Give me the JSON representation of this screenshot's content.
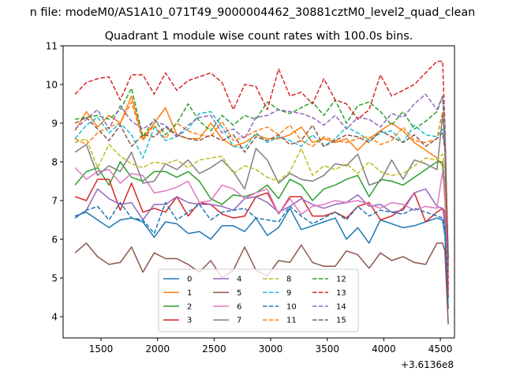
{
  "chart_data": {
    "type": "line",
    "suptitle": "n file: modeM0/AS1A10_071T49_9000004462_30881cztM0_level2_quad_clean",
    "title": "Quadrant 1 module wise count rates with 100.0s bins.",
    "xlabel": "",
    "ylabel": "",
    "offset_label": "+3.6136e8",
    "xlim": [
      1165,
      4625
    ],
    "ylim": [
      3.45,
      11.0
    ],
    "xticks": [
      1500,
      2000,
      2500,
      3000,
      3500,
      4000,
      4500
    ],
    "yticks": [
      4,
      5,
      6,
      7,
      8,
      9,
      10,
      11
    ],
    "legend": {
      "location": "lower-center",
      "columns": 4
    },
    "x": [
      1270,
      1370,
      1470,
      1570,
      1670,
      1770,
      1870,
      1970,
      2070,
      2170,
      2270,
      2370,
      2470,
      2570,
      2670,
      2770,
      2870,
      2970,
      3070,
      3170,
      3270,
      3370,
      3470,
      3570,
      3670,
      3770,
      3870,
      3970,
      4070,
      4170,
      4270,
      4370,
      4470,
      4520,
      4540,
      4570
    ],
    "series": [
      {
        "name": "0",
        "color": "#1f77b4",
        "dash": "solid",
        "values": [
          6.6,
          6.7,
          6.5,
          6.3,
          6.5,
          6.55,
          6.45,
          6.05,
          6.45,
          6.4,
          6.15,
          6.2,
          6.0,
          6.35,
          6.35,
          6.2,
          6.55,
          6.1,
          6.3,
          6.8,
          6.25,
          6.35,
          6.45,
          6.55,
          6.0,
          6.3,
          5.9,
          6.5,
          6.4,
          6.3,
          6.35,
          6.45,
          6.55,
          6.5,
          6.1,
          4.2
        ]
      },
      {
        "name": "1",
        "color": "#ff7f0e",
        "dash": "solid",
        "values": [
          8.8,
          9.3,
          8.9,
          9.2,
          9.0,
          9.7,
          8.6,
          9.0,
          9.4,
          8.7,
          8.6,
          8.6,
          9.0,
          8.6,
          8.4,
          8.5,
          8.7,
          8.6,
          8.6,
          8.7,
          8.9,
          8.5,
          8.6,
          8.5,
          8.6,
          8.3,
          8.6,
          8.8,
          9.0,
          8.8,
          8.5,
          8.3,
          8.1,
          7.9,
          7.0,
          5.0
        ]
      },
      {
        "name": "2",
        "color": "#2ca02c",
        "dash": "solid",
        "values": [
          7.4,
          7.75,
          7.85,
          7.4,
          8.0,
          7.6,
          7.5,
          7.75,
          7.75,
          7.6,
          7.75,
          7.5,
          7.05,
          6.9,
          7.15,
          7.1,
          7.2,
          7.4,
          7.05,
          7.55,
          7.4,
          7.0,
          7.3,
          7.4,
          7.55,
          7.65,
          7.1,
          7.55,
          7.5,
          7.4,
          7.6,
          7.8,
          8.0,
          8.0,
          7.3,
          5.3
        ]
      },
      {
        "name": "3",
        "color": "#d62728",
        "dash": "solid",
        "values": [
          7.1,
          7.0,
          7.55,
          7.55,
          6.75,
          7.45,
          6.7,
          6.8,
          6.7,
          7.1,
          6.6,
          6.95,
          6.9,
          6.65,
          6.55,
          6.6,
          7.1,
          7.2,
          6.65,
          7.1,
          7.1,
          6.6,
          6.6,
          6.7,
          6.55,
          6.85,
          6.95,
          6.5,
          6.6,
          6.8,
          7.2,
          6.45,
          6.7,
          6.8,
          6.7,
          4.5
        ]
      },
      {
        "name": "4",
        "color": "#9467bd",
        "dash": "solid",
        "values": [
          6.55,
          6.75,
          7.3,
          7.05,
          6.9,
          6.95,
          6.5,
          6.9,
          6.9,
          7.1,
          6.95,
          6.9,
          6.9,
          6.85,
          6.75,
          7.05,
          7.1,
          6.95,
          6.7,
          6.85,
          7.05,
          6.9,
          6.8,
          6.9,
          6.95,
          7.15,
          6.85,
          6.9,
          6.7,
          6.75,
          7.2,
          7.3,
          6.85,
          6.8,
          6.4,
          4.8
        ]
      },
      {
        "name": "5",
        "color": "#8c564b",
        "dash": "solid",
        "values": [
          5.65,
          5.9,
          5.55,
          5.35,
          5.4,
          5.8,
          5.15,
          5.65,
          5.5,
          5.5,
          5.35,
          5.15,
          5.45,
          5.0,
          5.2,
          5.8,
          5.2,
          5.05,
          5.45,
          5.4,
          5.85,
          5.4,
          5.3,
          5.3,
          5.7,
          5.6,
          5.25,
          5.65,
          5.45,
          5.55,
          5.4,
          5.35,
          5.9,
          5.9,
          5.7,
          3.8
        ]
      },
      {
        "name": "6",
        "color": "#e377c2",
        "dash": "solid",
        "values": [
          7.85,
          7.55,
          7.75,
          7.8,
          7.45,
          7.7,
          7.65,
          7.2,
          7.25,
          7.35,
          7.5,
          6.95,
          7.0,
          7.4,
          7.3,
          7.05,
          7.2,
          7.3,
          6.65,
          7.05,
          6.65,
          6.85,
          6.9,
          7.0,
          6.95,
          7.0,
          6.9,
          6.8,
          6.95,
          6.9,
          6.75,
          6.85,
          6.8,
          7.75,
          7.2,
          5.1
        ]
      },
      {
        "name": "7",
        "color": "#7f7f7f",
        "dash": "solid",
        "values": [
          8.25,
          8.45,
          7.65,
          7.9,
          7.75,
          8.25,
          7.45,
          7.5,
          7.95,
          7.8,
          8.05,
          7.7,
          7.85,
          8.05,
          7.75,
          7.3,
          8.35,
          8.05,
          7.45,
          7.7,
          7.55,
          7.5,
          7.65,
          7.95,
          7.9,
          8.2,
          7.4,
          7.5,
          8.05,
          7.55,
          8.05,
          7.95,
          7.8,
          9.2,
          8.6,
          5.4
        ]
      },
      {
        "name": "8",
        "color": "#bcbd22",
        "dash": "dashed",
        "values": [
          8.5,
          8.6,
          7.85,
          8.45,
          8.15,
          7.95,
          7.85,
          8.0,
          7.95,
          8.05,
          7.85,
          8.05,
          8.1,
          8.15,
          7.7,
          7.9,
          7.8,
          7.6,
          7.5,
          7.75,
          8.35,
          7.65,
          7.9,
          7.8,
          7.95,
          7.7,
          8.0,
          7.75,
          7.65,
          7.7,
          7.9,
          8.1,
          8.05,
          8.2,
          7.85,
          5.2
        ]
      },
      {
        "name": "9",
        "color": "#17becf",
        "dash": "dashed",
        "values": [
          8.6,
          8.95,
          9.15,
          8.75,
          9.0,
          8.7,
          8.1,
          8.9,
          8.55,
          8.65,
          8.85,
          9.25,
          9.3,
          8.9,
          8.4,
          8.35,
          8.75,
          8.5,
          8.65,
          8.55,
          8.4,
          8.7,
          8.4,
          8.6,
          8.9,
          8.75,
          8.55,
          8.75,
          8.8,
          8.5,
          8.95,
          8.7,
          8.65,
          8.85,
          8.4,
          5.2
        ]
      },
      {
        "name": "10",
        "color": "#1f77b4",
        "dash": "dashed",
        "values": [
          6.55,
          6.75,
          6.85,
          6.5,
          6.95,
          6.55,
          6.5,
          6.15,
          6.95,
          6.5,
          6.7,
          6.9,
          6.5,
          6.7,
          6.75,
          6.8,
          6.55,
          6.5,
          6.45,
          6.85,
          6.6,
          6.4,
          6.55,
          6.7,
          6.5,
          6.85,
          6.6,
          6.75,
          6.7,
          6.65,
          6.8,
          6.7,
          6.6,
          6.55,
          6.3,
          4.4
        ]
      },
      {
        "name": "11",
        "color": "#ff7f0e",
        "dash": "dashed",
        "values": [
          8.6,
          8.45,
          8.75,
          8.9,
          9.0,
          9.55,
          8.55,
          8.95,
          8.6,
          9.0,
          8.8,
          8.7,
          8.65,
          9.05,
          8.55,
          8.65,
          8.8,
          8.9,
          8.7,
          8.95,
          8.55,
          8.4,
          8.65,
          8.55,
          8.5,
          8.6,
          8.65,
          8.45,
          8.55,
          8.9,
          8.55,
          8.5,
          8.6,
          9.3,
          8.8,
          5.3
        ]
      },
      {
        "name": "12",
        "color": "#2ca02c",
        "dash": "dashed",
        "values": [
          9.1,
          9.15,
          9.2,
          9.1,
          9.35,
          9.9,
          8.65,
          9.1,
          8.7,
          9.0,
          9.5,
          9.05,
          8.8,
          9.2,
          8.95,
          9.2,
          9.1,
          9.55,
          9.35,
          9.25,
          9.4,
          9.55,
          9.2,
          9.6,
          9.0,
          9.45,
          9.55,
          9.3,
          8.95,
          9.3,
          8.85,
          9.05,
          9.3,
          9.7,
          8.55,
          5.6
        ]
      },
      {
        "name": "13",
        "color": "#d62728",
        "dash": "dashed",
        "values": [
          9.75,
          10.05,
          10.15,
          10.2,
          9.6,
          10.25,
          10.25,
          9.75,
          10.3,
          9.85,
          10.1,
          10.2,
          10.3,
          10.05,
          9.35,
          10.0,
          9.95,
          9.35,
          10.4,
          9.7,
          9.8,
          9.5,
          10.15,
          9.6,
          9.5,
          9.1,
          9.35,
          10.25,
          9.7,
          9.85,
          10.0,
          10.3,
          10.6,
          10.6,
          9.0,
          4.7
        ]
      },
      {
        "name": "14",
        "color": "#9467bd",
        "dash": "dashed",
        "values": [
          8.85,
          9.1,
          9.35,
          8.85,
          9.45,
          9.05,
          8.85,
          9.05,
          8.95,
          8.65,
          8.95,
          9.15,
          9.2,
          8.75,
          8.85,
          8.6,
          9.15,
          9.2,
          9.35,
          9.3,
          9.25,
          9.15,
          8.95,
          9.2,
          8.85,
          9.15,
          9.1,
          8.9,
          9.25,
          9.15,
          9.5,
          9.75,
          9.35,
          9.7,
          9.0,
          5.4
        ]
      },
      {
        "name": "15",
        "color": "#8c564b",
        "dash": "dashed",
        "values": [
          9.0,
          9.15,
          8.85,
          8.55,
          8.95,
          8.4,
          8.7,
          8.65,
          8.9,
          8.7,
          8.6,
          8.55,
          8.7,
          8.55,
          8.7,
          8.25,
          8.65,
          8.55,
          8.7,
          8.45,
          8.55,
          8.95,
          8.4,
          8.55,
          8.7,
          8.65,
          8.5,
          8.8,
          8.65,
          8.5,
          8.7,
          8.4,
          8.6,
          8.75,
          8.3,
          5.5
        ]
      }
    ]
  }
}
